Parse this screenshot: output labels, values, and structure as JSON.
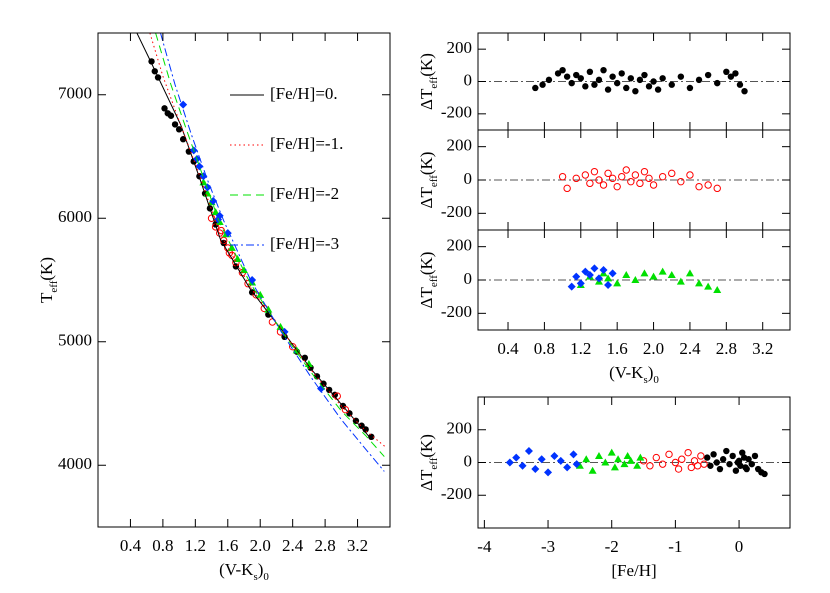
{
  "chart_data": [
    {
      "type": "scatter",
      "xlim": [
        0,
        3.6
      ],
      "ylim": [
        3500,
        7500
      ],
      "xticks": [
        0.4,
        0.8,
        1.2,
        1.6,
        {
          "value": 2,
          "label": "2.0"
        },
        2.4,
        2.8,
        3.2
      ],
      "yticks": [
        4000,
        5000,
        6000,
        7000
      ],
      "xlabel": [
        "(V-K",
        "s",
        ")",
        "0"
      ],
      "ylabel": [
        "T",
        "eff",
        "(K)"
      ],
      "legend": "upper right",
      "series": [
        {
          "marker": "dot",
          "color": "#000000",
          "x": [
            0.66,
            0.7,
            0.74,
            0.82,
            0.86,
            0.9,
            0.95,
            1.0,
            1.05,
            1.12,
            1.18,
            1.25,
            1.32,
            1.38,
            1.45,
            1.55,
            1.7,
            1.9,
            2.1,
            2.3,
            2.45,
            2.55,
            2.62,
            2.7,
            2.78,
            2.85,
            2.92,
            3.02,
            3.1,
            3.18,
            3.25,
            3.3,
            3.37
          ],
          "values": [
            7270,
            7190,
            7140,
            6890,
            6850,
            6830,
            6760,
            6720,
            6640,
            6540,
            6460,
            6340,
            6200,
            6080,
            5950,
            5800,
            5610,
            5400,
            5220,
            5040,
            4920,
            4870,
            4790,
            4720,
            4660,
            4610,
            4570,
            4480,
            4420,
            4360,
            4320,
            4290,
            4230
          ]
        },
        {
          "marker": "circle",
          "color": "#ff0000",
          "x": [
            1.4,
            1.45,
            1.5,
            1.55,
            1.6,
            1.65,
            1.7,
            1.78,
            1.85,
            1.95,
            2.05,
            2.15,
            2.25,
            2.4,
            2.95,
            3.05,
            1.52,
            1.62
          ],
          "values": [
            6000,
            5930,
            5880,
            5820,
            5760,
            5700,
            5640,
            5560,
            5470,
            5380,
            5270,
            5160,
            5080,
            4960,
            4560,
            4450,
            5900,
            5720
          ]
        },
        {
          "marker": "triangle",
          "color": "#00e000",
          "x": [
            1.3,
            1.35,
            1.4,
            1.45,
            1.5,
            1.58,
            1.65,
            1.72,
            1.8,
            1.9,
            2.0,
            2.1,
            2.25,
            2.45,
            2.6
          ],
          "values": [
            6290,
            6200,
            6130,
            6050,
            5970,
            5870,
            5760,
            5670,
            5580,
            5480,
            5380,
            5260,
            5120,
            4930,
            4820
          ]
        },
        {
          "marker": "diamond",
          "color": "#0033ff",
          "x": [
            1.05,
            1.18,
            1.22,
            1.25,
            1.3,
            1.35,
            1.42,
            1.5,
            1.6,
            1.9,
            2.3,
            2.75,
            1.48
          ],
          "values": [
            6920,
            6550,
            6480,
            6420,
            6340,
            6250,
            6140,
            6020,
            5880,
            5500,
            5080,
            4620,
            5990
          ]
        },
        {
          "name": "[Fe/H]=0.",
          "marker": "none",
          "dash": "solid",
          "color": "#000000",
          "x": [
            0.48,
            0.64,
            1.02,
            1.26,
            1.51,
            1.88,
            2.26,
            2.63,
            3.0,
            3.37
          ],
          "values": [
            7500,
            7282,
            6757,
            6312,
            5827,
            5423,
            5100,
            4777,
            4494,
            4211
          ]
        },
        {
          "name": "[Fe/H]=-1.",
          "marker": "none",
          "dash": "dotted",
          "color": "#ff0000",
          "x": [
            0.64,
            0.8,
            1.0,
            1.25,
            1.5,
            1.88,
            2.26,
            2.63,
            3.0,
            3.3,
            3.56
          ],
          "values": [
            7500,
            7150,
            6790,
            6350,
            5880,
            5440,
            5100,
            4770,
            4480,
            4280,
            4140
          ]
        },
        {
          "name": "[Fe/H]=-2",
          "marker": "none",
          "dash": "dashed",
          "color": "#00e000",
          "x": [
            0.71,
            0.9,
            1.1,
            1.3,
            1.5,
            1.88,
            2.26,
            2.63,
            3.0,
            3.3,
            3.53
          ],
          "values": [
            7500,
            7080,
            6700,
            6330,
            5960,
            5470,
            5090,
            4750,
            4440,
            4240,
            4070
          ]
        },
        {
          "name": "[Fe/H]=-3",
          "marker": "none",
          "dash": "dashdot",
          "color": "#0033ff",
          "x": [
            0.77,
            0.95,
            1.15,
            1.35,
            1.55,
            1.88,
            2.26,
            2.63,
            3.0,
            3.3,
            3.53
          ],
          "values": [
            7500,
            7080,
            6680,
            6310,
            5980,
            5500,
            5080,
            4710,
            4370,
            4130,
            3950
          ]
        }
      ]
    },
    {
      "type": "scatter",
      "xlim": [
        0.07,
        3.5
      ],
      "ylim": [
        -300,
        300
      ],
      "xtick_labels": false,
      "hline": 0,
      "xticks": [
        0.4,
        0.8,
        1.2,
        1.6,
        {
          "value": 2,
          "label": "2.0"
        },
        2.4,
        2.8,
        3.2
      ],
      "yticks": [
        -200,
        0,
        200
      ],
      "ylabel": [
        "ΔT",
        "eff",
        "(K)"
      ],
      "series": [
        {
          "marker": "dot",
          "color": "#000000",
          "x": [
            0.7,
            0.78,
            0.85,
            0.95,
            1.0,
            1.05,
            1.1,
            1.15,
            1.2,
            1.25,
            1.3,
            1.35,
            1.4,
            1.45,
            1.5,
            1.55,
            1.6,
            1.65,
            1.7,
            1.75,
            1.8,
            1.85,
            1.9,
            1.95,
            2.0,
            2.05,
            2.1,
            2.2,
            2.3,
            2.4,
            2.5,
            2.6,
            2.7,
            2.8,
            2.85,
            2.9,
            2.95,
            3.0
          ],
          "values": [
            -40,
            -20,
            10,
            50,
            70,
            30,
            -10,
            40,
            20,
            -30,
            60,
            -20,
            10,
            70,
            -50,
            30,
            -10,
            50,
            -40,
            20,
            -60,
            10,
            40,
            -30,
            0,
            -50,
            20,
            -20,
            30,
            -40,
            10,
            40,
            -10,
            60,
            30,
            50,
            -20,
            -60
          ]
        }
      ]
    },
    {
      "type": "scatter",
      "xlim": [
        0.07,
        3.5
      ],
      "ylim": [
        -300,
        300
      ],
      "xtick_labels": false,
      "hline": 0,
      "xticks": [
        0.4,
        0.8,
        1.2,
        1.6,
        {
          "value": 2,
          "label": "2.0"
        },
        2.4,
        2.8,
        3.2
      ],
      "yticks": [
        -200,
        0,
        200
      ],
      "ylabel": [
        "ΔT",
        "eff",
        "(K)"
      ],
      "series": [
        {
          "marker": "circle",
          "color": "#ff0000",
          "x": [
            1.0,
            1.05,
            1.15,
            1.25,
            1.3,
            1.35,
            1.4,
            1.45,
            1.5,
            1.55,
            1.6,
            1.65,
            1.7,
            1.75,
            1.8,
            1.85,
            1.9,
            1.95,
            2.0,
            2.1,
            2.2,
            2.3,
            2.4,
            2.5,
            2.6,
            2.7
          ],
          "values": [
            20,
            -50,
            10,
            30,
            -20,
            50,
            0,
            -30,
            40,
            10,
            -40,
            20,
            60,
            -10,
            30,
            -20,
            50,
            10,
            -30,
            20,
            40,
            -10,
            30,
            -40,
            -30,
            -50
          ]
        }
      ]
    },
    {
      "type": "scatter",
      "xlim": [
        0.07,
        3.5
      ],
      "ylim": [
        -300,
        300
      ],
      "hline": 0,
      "xticks": [
        0.4,
        0.8,
        1.2,
        1.6,
        {
          "value": 2,
          "label": "2.0"
        },
        2.4,
        2.8,
        3.2
      ],
      "yticks": [
        -200,
        0,
        200
      ],
      "xlabel": [
        "(V-K",
        "s",
        ")",
        "0"
      ],
      "ylabel": [
        "ΔT",
        "eff",
        "(K)"
      ],
      "series": [
        {
          "marker": "triangle",
          "color": "#00e000",
          "x": [
            1.2,
            1.3,
            1.4,
            1.45,
            1.5,
            1.6,
            1.7,
            1.8,
            1.9,
            2.0,
            2.1,
            2.2,
            2.3,
            2.4,
            2.5,
            2.6,
            2.7
          ],
          "values": [
            -30,
            20,
            -10,
            40,
            10,
            -20,
            30,
            0,
            40,
            20,
            50,
            30,
            -10,
            40,
            -20,
            -40,
            -60
          ]
        },
        {
          "marker": "diamond",
          "color": "#0033ff",
          "x": [
            1.1,
            1.15,
            1.2,
            1.25,
            1.3,
            1.35,
            1.4,
            1.45,
            1.5,
            1.55
          ],
          "values": [
            -40,
            20,
            -20,
            50,
            30,
            70,
            10,
            60,
            -30,
            40
          ]
        }
      ]
    },
    {
      "type": "scatter",
      "xlim": [
        -4.1,
        0.8
      ],
      "ylim": [
        -400,
        400
      ],
      "hline": 0,
      "xticks": [
        -4,
        -3,
        -2,
        -1,
        0
      ],
      "yticks": [
        -200,
        0,
        200
      ],
      "xlabel": [
        "[Fe/H]"
      ],
      "ylabel": [
        "ΔT",
        "eff",
        "(K)"
      ],
      "series": [
        {
          "marker": "dot",
          "color": "#000000",
          "x": [
            -0.5,
            -0.45,
            -0.4,
            -0.35,
            -0.3,
            -0.25,
            -0.2,
            -0.15,
            -0.1,
            -0.05,
            0.0,
            0.02,
            0.05,
            0.08,
            0.1,
            0.15,
            0.2,
            0.25,
            0.3,
            0.35,
            0.4,
            -0.02,
            0.12
          ],
          "values": [
            30,
            -20,
            50,
            0,
            -40,
            20,
            70,
            -10,
            40,
            -50,
            10,
            -20,
            60,
            30,
            -30,
            20,
            -10,
            40,
            -40,
            -60,
            -70,
            0,
            -40
          ]
        },
        {
          "marker": "circle",
          "color": "#ff0000",
          "x": [
            -1.5,
            -1.4,
            -1.3,
            -1.2,
            -1.1,
            -1.0,
            -0.95,
            -0.9,
            -0.8,
            -0.75,
            -0.7,
            -0.65,
            -0.6,
            -0.55
          ],
          "values": [
            10,
            -20,
            30,
            -10,
            50,
            0,
            -40,
            20,
            60,
            -30,
            10,
            -20,
            40,
            -10
          ]
        },
        {
          "marker": "triangle",
          "color": "#00e000",
          "x": [
            -2.5,
            -2.4,
            -2.3,
            -2.2,
            -2.1,
            -2.0,
            -1.95,
            -1.9,
            -1.8,
            -1.75,
            -1.7,
            -1.6,
            -1.55
          ],
          "values": [
            -20,
            20,
            -50,
            40,
            0,
            60,
            -30,
            20,
            -10,
            40,
            10,
            -20,
            30
          ]
        },
        {
          "marker": "diamond",
          "color": "#0033ff",
          "x": [
            -3.6,
            -3.5,
            -3.4,
            -3.3,
            -3.2,
            -3.1,
            -3.0,
            -2.9,
            -2.8,
            -2.7,
            -2.6,
            -2.55
          ],
          "values": [
            0,
            30,
            -20,
            70,
            -40,
            20,
            -60,
            40,
            10,
            -30,
            50,
            -10
          ]
        }
      ]
    }
  ]
}
